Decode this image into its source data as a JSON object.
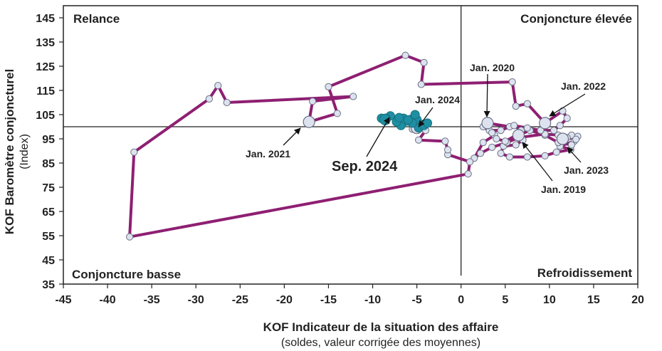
{
  "chart_data": {
    "type": "scatter",
    "xlabel": "KOF Indicateur de la situation des affaire",
    "xlabel_sub": "(soldes, valeur corrigée des moyennes)",
    "ylabel": "KOF Baromètre conjoncturel",
    "ylabel_sub": "(Index)",
    "xlim": [
      -45,
      20
    ],
    "ylim": [
      35,
      150
    ],
    "x_ticks": [
      "-45",
      "-40",
      "-35",
      "-30",
      "-25",
      "-20",
      "-15",
      "-10",
      "-5",
      "0",
      "5",
      "10",
      "15",
      "20"
    ],
    "y_ticks": [
      "35",
      "45",
      "55",
      "65",
      "75",
      "85",
      "95",
      "105",
      "115",
      "125",
      "135",
      "145"
    ],
    "quadrants": {
      "top_left": "Relance",
      "top_right": "Conjoncture élevée",
      "bottom_left": "Conjoncture basse",
      "bottom_right": "Refroidissement"
    },
    "reference_lines": {
      "x": 0,
      "y": 100
    },
    "colors": {
      "path": "#8e1f72",
      "marker_fill": "#dde3ee",
      "recent": "#1f8fa3",
      "axis": "#222222"
    },
    "series": [
      {
        "points": [
          [
            11.5,
            95
          ],
          [
            12.5,
            96.5
          ],
          [
            13.2,
            96
          ],
          [
            12.8,
            94
          ],
          [
            11.2,
            92
          ],
          [
            12.4,
            90.5
          ],
          [
            10.8,
            89.5
          ],
          [
            9.5,
            88
          ],
          [
            7.5,
            87.5
          ],
          [
            5.5,
            87.5
          ],
          [
            4.5,
            89
          ],
          [
            4.8,
            92
          ],
          [
            6.2,
            92.5
          ],
          [
            7.0,
            94.5
          ],
          [
            6.5,
            96.5
          ],
          [
            7.8,
            98.5
          ],
          [
            9.5,
            96.5
          ],
          [
            11.0,
            93.5
          ],
          [
            12.5,
            92.5
          ],
          [
            13.0,
            94.8
          ],
          [
            12.0,
            95.5
          ],
          [
            11.0,
            96.5
          ],
          [
            9.5,
            97
          ],
          [
            6.5,
            95.5
          ],
          [
            5.2,
            93.5
          ],
          [
            3.5,
            91.5
          ],
          [
            2.2,
            89
          ],
          [
            1.5,
            87
          ],
          [
            2.5,
            93.5
          ],
          [
            3.8,
            96.5
          ],
          [
            3.2,
            98.5
          ],
          [
            4.5,
            98.5
          ],
          [
            5.5,
            100
          ],
          [
            3.0,
            101.5
          ],
          [
            2.5,
            100
          ],
          [
            3.5,
            97.5
          ],
          [
            4.0,
            95
          ],
          [
            5.0,
            94
          ],
          [
            6.5,
            97
          ],
          [
            6.8,
            98.5
          ],
          [
            6.0,
            100.5
          ],
          [
            7.5,
            99.5
          ],
          [
            9.0,
            98.5
          ],
          [
            10.5,
            98.5
          ],
          [
            11.2,
            100.5
          ],
          [
            12.0,
            103.5
          ],
          [
            11.5,
            106.5
          ],
          [
            9.5,
            101.5
          ],
          [
            7.5,
            109.5
          ],
          [
            6.2,
            108.5
          ],
          [
            5.8,
            118.5
          ],
          [
            -4.5,
            117.5
          ],
          [
            -4.2,
            126.5
          ],
          [
            -6.3,
            129.5
          ],
          [
            -15,
            116.5
          ],
          [
            -14,
            105.5
          ],
          [
            -17.2,
            102
          ],
          [
            -16.8,
            110.5
          ],
          [
            -12.2,
            112.5
          ],
          [
            -26.5,
            110
          ],
          [
            -27.5,
            117
          ],
          [
            -28.5,
            111.5
          ],
          [
            -37,
            89.5
          ],
          [
            -37.5,
            54.5
          ],
          [
            0.8,
            80.5
          ],
          [
            1.0,
            85.5
          ],
          [
            -1.5,
            88.5
          ],
          [
            -1.5,
            90.5
          ],
          [
            -1.8,
            94
          ],
          [
            -4.8,
            94.5
          ],
          [
            -4.0,
            98.5
          ],
          [
            -5.5,
            99
          ]
        ],
        "highlights": [
          [
            3.0,
            101.5
          ],
          [
            9.5,
            101.5
          ],
          [
            -17.2,
            102
          ],
          [
            6.5,
            96.5
          ],
          [
            11.5,
            95
          ],
          [
            -5.0,
            99.5
          ]
        ]
      },
      {
        "points": [
          [
            -4.8,
            99.5
          ],
          [
            -4.2,
            100.5
          ],
          [
            -3.8,
            101.5
          ],
          [
            -5.0,
            103
          ],
          [
            -5.5,
            101.5
          ],
          [
            -6.8,
            100.5
          ],
          [
            -7.3,
            102
          ],
          [
            -6.5,
            103.5
          ],
          [
            -5.2,
            105
          ],
          [
            -6.0,
            102.8
          ],
          [
            -7.0,
            103.8
          ],
          [
            -8.0,
            104.5
          ],
          [
            -8.5,
            103.5
          ],
          [
            -9.0,
            103.5
          ],
          [
            -8.6,
            103
          ]
        ],
        "highlights": [
          [
            -8.6,
            103
          ]
        ]
      }
    ],
    "annotations": [
      {
        "text": "Jan. 2020",
        "x": 3.0,
        "y": 101.5
      },
      {
        "text": "Jan. 2022",
        "x": 9.5,
        "y": 101.5
      },
      {
        "text": "Jan. 2024",
        "x": -5.0,
        "y": 99.5
      },
      {
        "text": "Jan. 2021",
        "x": -17.2,
        "y": 102
      },
      {
        "text": "Jan. 2023",
        "x": 11.5,
        "y": 95
      },
      {
        "text": "Jan. 2019",
        "x": 6.5,
        "y": 96.5
      },
      {
        "text": "Sep. 2024",
        "x": -8.6,
        "y": 103
      }
    ]
  }
}
